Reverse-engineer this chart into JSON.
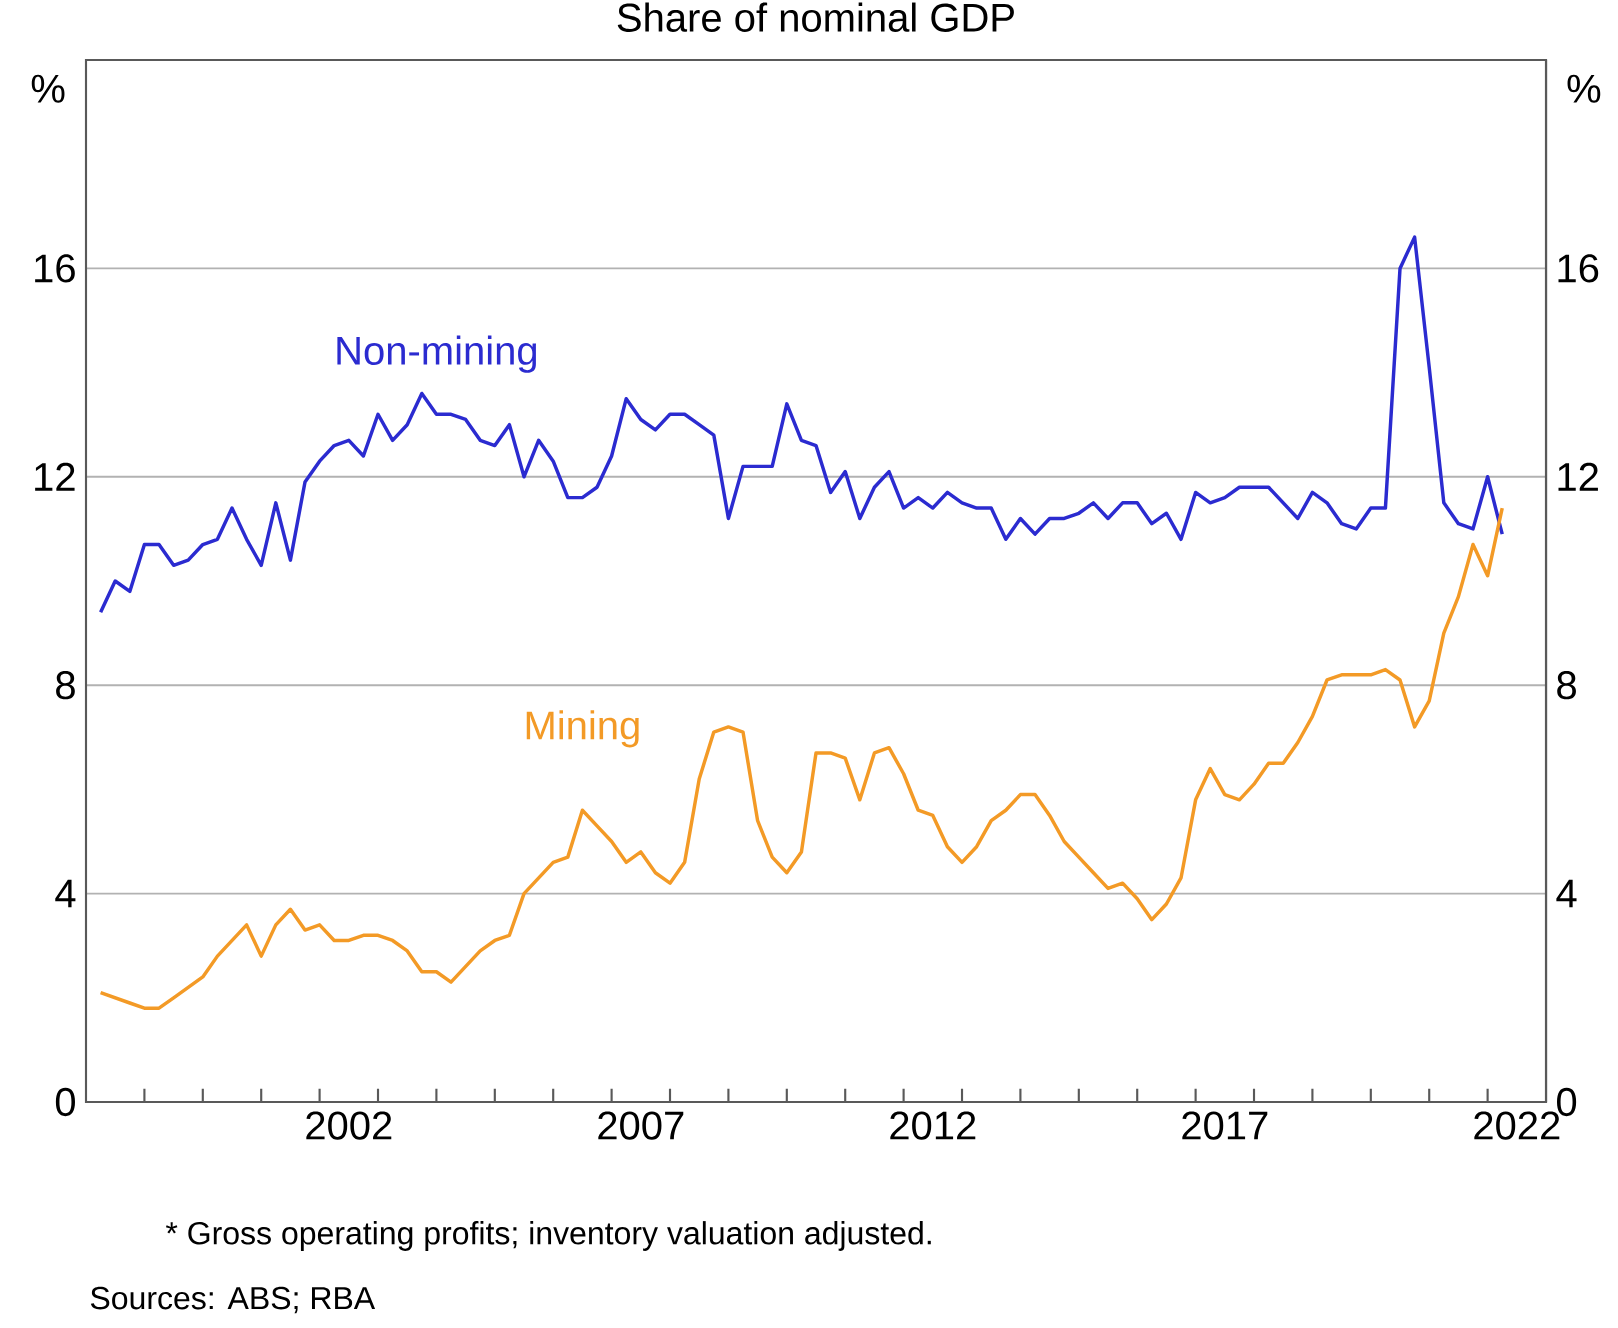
{
  "chart_data": {
    "type": "line",
    "title": "Share of nominal GDP",
    "ylabel": "%",
    "y2label": "%",
    "x": [
      1998.25,
      1998.5,
      1998.75,
      1999,
      1999.25,
      1999.5,
      1999.75,
      2000,
      2000.25,
      2000.5,
      2000.75,
      2001,
      2001.25,
      2001.5,
      2001.75,
      2002,
      2002.25,
      2002.5,
      2002.75,
      2003,
      2003.25,
      2003.5,
      2003.75,
      2004,
      2004.25,
      2004.5,
      2004.75,
      2005,
      2005.25,
      2005.5,
      2005.75,
      2006,
      2006.25,
      2006.5,
      2006.75,
      2007,
      2007.25,
      2007.5,
      2007.75,
      2008,
      2008.25,
      2008.5,
      2008.75,
      2009,
      2009.25,
      2009.5,
      2009.75,
      2010,
      2010.25,
      2010.5,
      2010.75,
      2011,
      2011.25,
      2011.5,
      2011.75,
      2012,
      2012.25,
      2012.5,
      2012.75,
      2013,
      2013.25,
      2013.5,
      2013.75,
      2014,
      2014.25,
      2014.5,
      2014.75,
      2015,
      2015.25,
      2015.5,
      2015.75,
      2016,
      2016.25,
      2016.5,
      2016.75,
      2017,
      2017.25,
      2017.5,
      2017.75,
      2018,
      2018.25,
      2018.5,
      2018.75,
      2019,
      2019.25,
      2019.5,
      2019.75,
      2020,
      2020.25,
      2020.5,
      2020.75,
      2021,
      2021.25,
      2021.5,
      2021.75,
      2022,
      2022.25
    ],
    "series": [
      {
        "name": "Non-mining",
        "color": "#2b2bd0",
        "values": [
          9.4,
          10.0,
          9.8,
          10.7,
          10.7,
          10.3,
          10.4,
          10.7,
          10.8,
          11.4,
          10.8,
          10.3,
          11.5,
          10.4,
          11.9,
          12.3,
          12.6,
          12.7,
          12.4,
          13.2,
          12.7,
          13.0,
          13.6,
          13.2,
          13.2,
          13.1,
          12.7,
          12.6,
          13.0,
          12.0,
          12.7,
          12.3,
          11.6,
          11.6,
          11.8,
          12.4,
          13.5,
          13.1,
          12.9,
          13.2,
          13.2,
          13.0,
          12.8,
          11.2,
          12.2,
          12.2,
          12.2,
          13.4,
          12.7,
          12.6,
          11.7,
          12.1,
          11.2,
          11.8,
          12.1,
          11.4,
          11.6,
          11.4,
          11.7,
          11.5,
          11.4,
          11.4,
          10.8,
          11.2,
          10.9,
          11.2,
          11.2,
          11.3,
          11.5,
          11.2,
          11.5,
          11.5,
          11.1,
          11.3,
          10.8,
          11.7,
          11.5,
          11.6,
          11.8,
          11.8,
          11.8,
          11.5,
          11.2,
          11.7,
          11.5,
          11.1,
          11.0,
          11.4,
          11.4,
          16.0,
          16.6,
          14.1,
          11.5,
          11.1,
          11.0,
          12.0,
          10.9
        ]
      },
      {
        "name": "Mining",
        "color": "#f39a26",
        "values": [
          2.1,
          2.0,
          1.9,
          1.8,
          1.8,
          2.0,
          2.2,
          2.4,
          2.8,
          3.1,
          3.4,
          2.8,
          3.4,
          3.7,
          3.3,
          3.4,
          3.1,
          3.1,
          3.2,
          3.2,
          3.1,
          2.9,
          2.5,
          2.5,
          2.3,
          2.6,
          2.9,
          3.1,
          3.2,
          4.0,
          4.3,
          4.6,
          4.7,
          5.6,
          5.3,
          5.0,
          4.6,
          4.8,
          4.4,
          4.2,
          4.6,
          6.2,
          7.1,
          7.2,
          7.1,
          5.4,
          4.7,
          4.4,
          4.8,
          6.7,
          6.7,
          6.6,
          5.8,
          6.7,
          6.8,
          6.3,
          5.6,
          5.5,
          4.9,
          4.6,
          4.9,
          5.4,
          5.6,
          5.9,
          5.9,
          5.5,
          5.0,
          4.7,
          4.4,
          4.1,
          4.2,
          3.9,
          3.5,
          3.8,
          4.3,
          5.8,
          6.4,
          5.9,
          5.8,
          6.1,
          6.5,
          6.5,
          6.9,
          7.4,
          8.1,
          8.2,
          8.2,
          8.2,
          8.3,
          8.1,
          7.2,
          7.7,
          9.0,
          9.7,
          10.7,
          10.1,
          11.4
        ]
      }
    ],
    "xlim": [
      1998,
      2023
    ],
    "xticks": [
      {
        "value": 1999,
        "label": null
      },
      {
        "value": 2000,
        "label": null
      },
      {
        "value": 2001,
        "label": null
      },
      {
        "value": 2002,
        "label": null
      },
      {
        "value": 2002.5,
        "label": "2002"
      },
      {
        "value": 2003,
        "label": null
      },
      {
        "value": 2004,
        "label": null
      },
      {
        "value": 2005,
        "label": null
      },
      {
        "value": 2006,
        "label": null
      },
      {
        "value": 2007,
        "label": null
      },
      {
        "value": 2007.5,
        "label": "2007"
      },
      {
        "value": 2008,
        "label": null
      },
      {
        "value": 2009,
        "label": null
      },
      {
        "value": 2010,
        "label": null
      },
      {
        "value": 2011,
        "label": null
      },
      {
        "value": 2012,
        "label": null
      },
      {
        "value": 2012.5,
        "label": "2012"
      },
      {
        "value": 2013,
        "label": null
      },
      {
        "value": 2014,
        "label": null
      },
      {
        "value": 2015,
        "label": null
      },
      {
        "value": 2016,
        "label": null
      },
      {
        "value": 2017,
        "label": null
      },
      {
        "value": 2017.5,
        "label": "2017"
      },
      {
        "value": 2018,
        "label": null
      },
      {
        "value": 2019,
        "label": null
      },
      {
        "value": 2020,
        "label": null
      },
      {
        "value": 2021,
        "label": null
      },
      {
        "value": 2022,
        "label": null
      },
      {
        "value": 2022.5,
        "label": "2022"
      }
    ],
    "ylim": [
      0,
      20
    ],
    "yticks": [
      0,
      4,
      8,
      12,
      16
    ],
    "y2lim": [
      0,
      20
    ],
    "y2ticks": [
      0,
      4,
      8,
      12,
      16
    ],
    "grid": "y",
    "annotations": [
      "*     Gross operating profits; inventory valuation adjusted.",
      "Sources: ABS; RBA"
    ]
  }
}
